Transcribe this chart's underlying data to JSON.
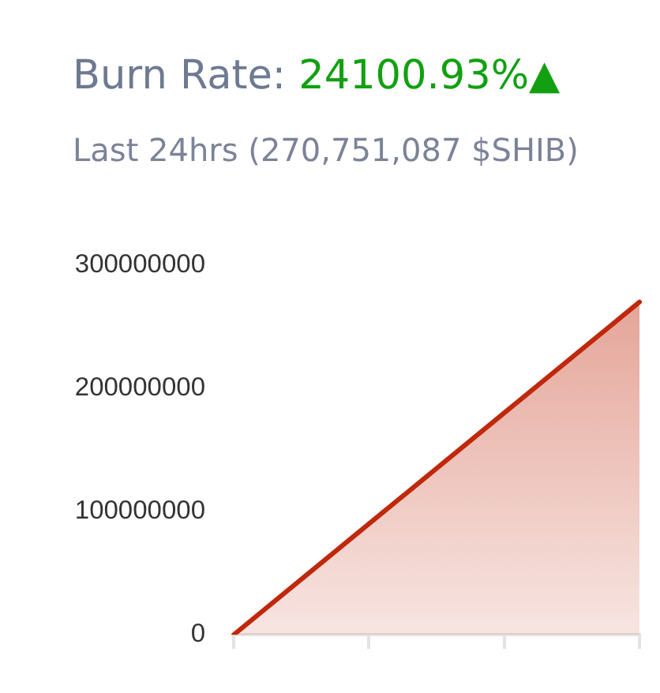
{
  "chart_data": {
    "type": "area",
    "title": "Burn Rate:",
    "subtitle": "Last 24hrs (270,751,087 $SHIB)",
    "annotations": [
      "24100.93%▲"
    ],
    "categories": [
      null,
      null,
      null,
      null
    ],
    "values": [
      0,
      90000000,
      180000000,
      270000000
    ],
    "color": "#c0280b",
    "ylim": [
      0,
      300000000
    ],
    "yticks": [
      0,
      100000000,
      200000000,
      300000000
    ],
    "grid": false,
    "legend": false,
    "marker": "none",
    "tick_labels": "y"
  }
}
